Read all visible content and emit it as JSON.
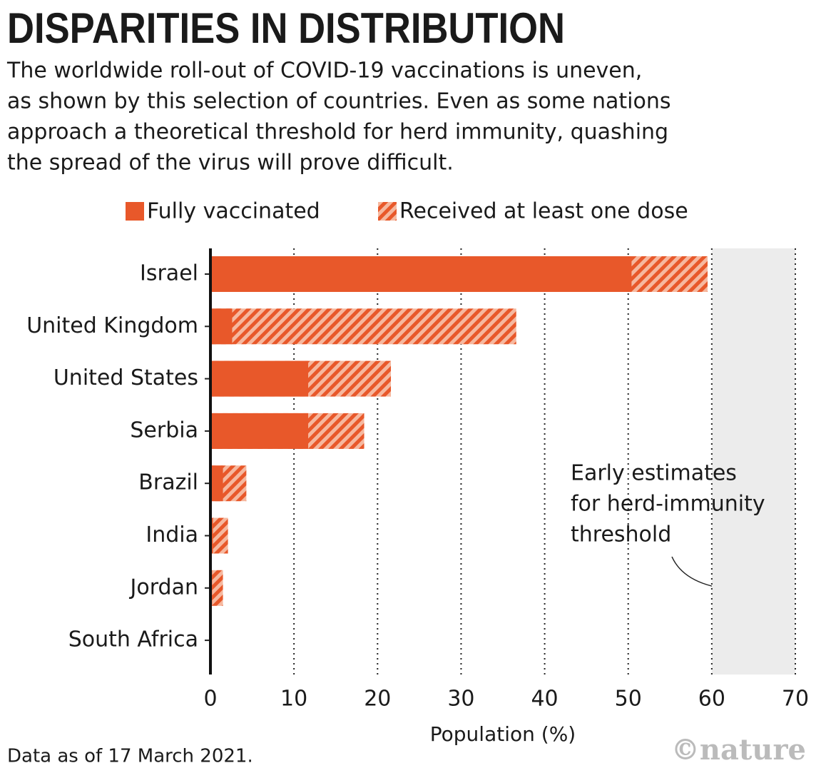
{
  "chart_data": {
    "type": "bar",
    "title": "DISPARITIES IN DISTRIBUTION",
    "subtitle": [
      "The worldwide roll-out of COVID-19 vaccinations is uneven,",
      "as shown by this selection of countries. Even as some nations",
      "approach a theoretical threshold for herd immunity, quashing",
      "the spread of the virus will prove difficult."
    ],
    "categories": [
      "Israel",
      "United Kingdom",
      "United States",
      "Serbia",
      "Brazil",
      "India",
      "Jordan",
      "South Africa"
    ],
    "series": [
      {
        "name": "Received at least one dose",
        "color": "#e8582a",
        "values": [
          59.5,
          36.6,
          21.6,
          18.4,
          4.3,
          2.1,
          1.5,
          0
        ]
      },
      {
        "name": "Fully vaccinated",
        "color": "#e8582a",
        "values": [
          50.4,
          2.6,
          11.7,
          11.7,
          1.5,
          0.3,
          0.2,
          0
        ]
      }
    ],
    "xlim": [
      0,
      70
    ],
    "xticks": [
      0,
      10,
      20,
      30,
      40,
      50,
      60,
      70
    ],
    "xlabel": "Population (%)",
    "grid": true,
    "herd_band": [
      60,
      70
    ],
    "annotation": [
      "Early estimates",
      "for herd-immunity",
      "threshold"
    ],
    "note": "Data as of 17 March 2021.",
    "credit": "©nature"
  }
}
